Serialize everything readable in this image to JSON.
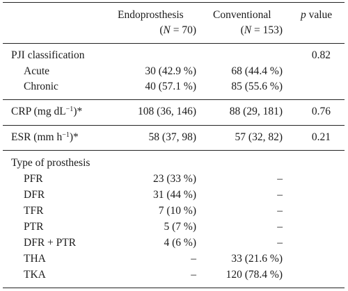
{
  "header": {
    "col_endo": "Endoprosthesis",
    "col_endo_n": "(N = 70)",
    "col_conv": "Conventional",
    "col_conv_n": "(N = 153)",
    "col_p_italic": "p",
    "col_p_rest": " value"
  },
  "pji": {
    "label": "PJI classification",
    "p": "0.82",
    "rows": [
      {
        "label": "Acute",
        "endo": "30 (42.9 %)",
        "conv": "68 (44.4 %)"
      },
      {
        "label": "Chronic",
        "endo": "40 (57.1 %)",
        "conv": "85 (55.6 %)"
      }
    ]
  },
  "crp": {
    "label_pre": "CRP (mg dL",
    "label_sup": "−1",
    "label_post": ")*",
    "endo": "108 (36, 146)",
    "conv": "88 (29, 181)",
    "p": "0.76"
  },
  "esr": {
    "label_pre": "ESR (mm h",
    "label_sup": "−1",
    "label_post": ")*",
    "endo": "58 (37, 98)",
    "conv": "57 (32, 82)",
    "p": "0.21"
  },
  "prosthesis": {
    "label": "Type of prosthesis",
    "rows": [
      {
        "label": "PFR",
        "endo": "23 (33 %)",
        "conv": "–"
      },
      {
        "label": "DFR",
        "endo": "31 (44 %)",
        "conv": "–"
      },
      {
        "label": "TFR",
        "endo": "7 (10 %)",
        "conv": "–"
      },
      {
        "label": "PTR",
        "endo": "5 (7 %)",
        "conv": "–"
      },
      {
        "label": "DFR + PTR",
        "endo": "4 (6 %)",
        "conv": "–"
      },
      {
        "label": "THA",
        "endo": "–",
        "conv": "33 (21.6 %)"
      },
      {
        "label": "TKA",
        "endo": "–",
        "conv": "120 (78.4 %)"
      }
    ]
  }
}
